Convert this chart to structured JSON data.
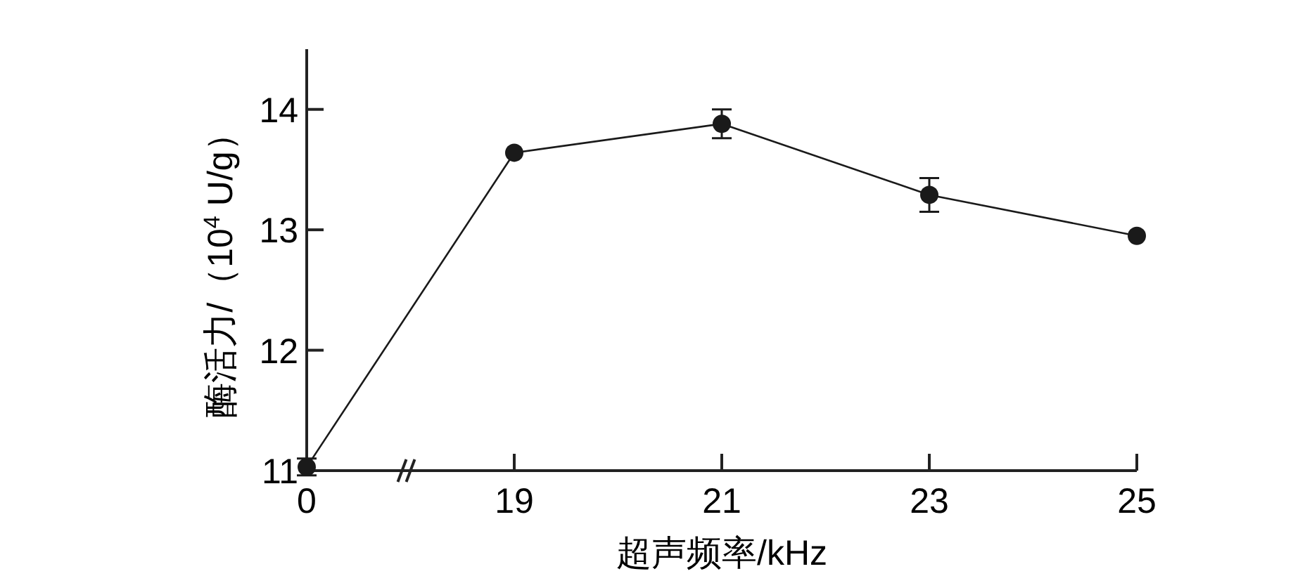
{
  "chart_data": {
    "type": "line",
    "xlabel": "超声频率/kHz",
    "ylabel": "酶活力/（10$^{4}$ U/g）",
    "categories": [
      "0",
      "19",
      "21",
      "23",
      "25"
    ],
    "values": [
      11.03,
      13.64,
      13.88,
      13.29,
      12.95
    ],
    "errors": [
      0.07,
      null,
      0.12,
      0.14,
      null
    ],
    "color": "#1a1a1a",
    "marker": "circle",
    "line_style": "solid",
    "grid": false,
    "ylim": [
      11,
      14.5
    ],
    "yticks": [
      11,
      12,
      13,
      14
    ]
  }
}
